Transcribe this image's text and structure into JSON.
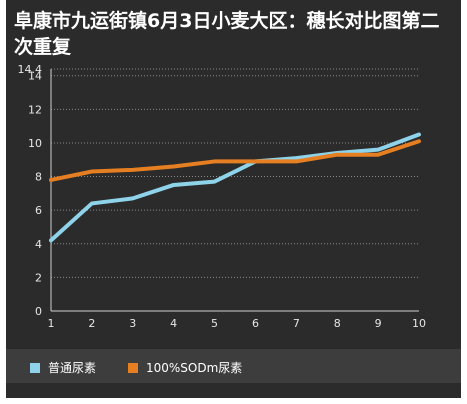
{
  "chart_data": {
    "type": "line",
    "title": "阜康市九运街镇6月3日小麦大区：穗长对比图第二次重复",
    "xlabel": "",
    "ylabel": "",
    "x": [
      1,
      2,
      3,
      4,
      5,
      6,
      7,
      8,
      9,
      10
    ],
    "ylim": [
      0,
      14.4
    ],
    "yticks": [
      0,
      2,
      4,
      6,
      8,
      10,
      12,
      14,
      14.4
    ],
    "grid": true,
    "legend_position": "bottom",
    "series": [
      {
        "name": "普通尿素",
        "color": "#8fd3ea",
        "values": [
          4.2,
          6.4,
          6.7,
          7.5,
          7.7,
          8.9,
          9.1,
          9.4,
          9.6,
          10.5
        ]
      },
      {
        "name": "100%SODm尿素",
        "color": "#e67e22",
        "values": [
          7.8,
          8.3,
          8.4,
          8.6,
          8.9,
          8.9,
          8.9,
          9.3,
          9.3,
          10.1
        ]
      }
    ]
  }
}
